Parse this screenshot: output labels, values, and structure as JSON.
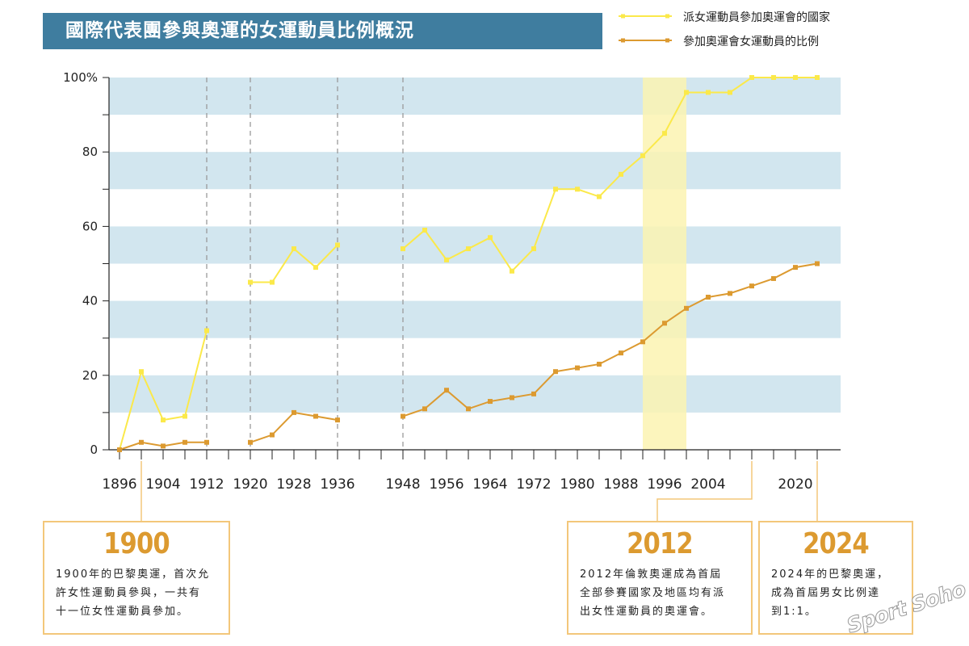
{
  "title": "國際代表團參與奧運的女運動員比例概況",
  "colors": {
    "title_bg": "#3f7d9f",
    "band": "#d2e6ef",
    "series_countries": "#fbe94a",
    "series_athletes": "#dc9a30",
    "highlight": "#fbf3b1",
    "callout_border": "#f3c77a",
    "callout_year": "#dc9a30"
  },
  "chart_data": {
    "type": "line",
    "ylim": [
      0,
      100
    ],
    "xlim": [
      1896,
      2024
    ],
    "y_ticks": [
      "0",
      "20",
      "40",
      "60",
      "80",
      "100%"
    ],
    "x_tick_labels": [
      "1896",
      "1904",
      "1912",
      "1920",
      "1928",
      "1936",
      "1948",
      "1956",
      "1964",
      "1972",
      "1980",
      "1988",
      "1996",
      "2004",
      "2020"
    ],
    "dashed_year_markers": [
      1912,
      1920,
      1936,
      1948
    ],
    "highlight_years": [
      1992,
      2000
    ],
    "series": [
      {
        "name": "派女運動員參加奧運會的國家",
        "segments": [
          {
            "x": [
              1896,
              1900,
              1904,
              1908,
              1912
            ],
            "y": [
              0,
              21,
              8,
              9,
              32
            ]
          },
          {
            "x": [
              1920,
              1924,
              1928,
              1932,
              1936
            ],
            "y": [
              45,
              45,
              54,
              49,
              55
            ]
          },
          {
            "x": [
              1948,
              1952,
              1956,
              1960,
              1964,
              1968,
              1972,
              1976,
              1980,
              1984,
              1988,
              1992,
              1996,
              2000,
              2004,
              2008,
              2012,
              2016,
              2020,
              2024
            ],
            "y": [
              54,
              59,
              51,
              54,
              57,
              48,
              54,
              70,
              70,
              68,
              74,
              79,
              85,
              96,
              96,
              96,
              100,
              100,
              100,
              100
            ]
          }
        ]
      },
      {
        "name": "參加奧運會女運動員的比例",
        "segments": [
          {
            "x": [
              1896,
              1900,
              1904,
              1908,
              1912
            ],
            "y": [
              0,
              2,
              1,
              2,
              2
            ]
          },
          {
            "x": [
              1920,
              1924,
              1928,
              1932,
              1936
            ],
            "y": [
              2,
              4,
              10,
              9,
              8
            ]
          },
          {
            "x": [
              1948,
              1952,
              1956,
              1960,
              1964,
              1968,
              1972,
              1976,
              1980,
              1984,
              1988,
              1992,
              1996,
              2000,
              2004,
              2008,
              2012,
              2016,
              2020,
              2024
            ],
            "y": [
              9,
              11,
              16,
              11,
              13,
              14,
              15,
              21,
              22,
              23,
              26,
              29,
              34,
              38,
              41,
              42,
              44,
              46,
              49,
              50
            ]
          }
        ]
      }
    ]
  },
  "callouts": [
    {
      "year": "1900",
      "lines": [
        "1900年的巴黎奧運，首次允",
        "許女性運動員參與，一共有",
        "十一位女性運動員參加。"
      ],
      "anchor_year": 1900
    },
    {
      "year": "2012",
      "lines": [
        "2012年倫敦奧運成為首屆",
        "全部參賽國家及地區均有派",
        "出女性運動員的奧運會。"
      ],
      "anchor_year": 2012
    },
    {
      "year": "2024",
      "lines": [
        "2024年的巴黎奧運，",
        "成為首屆男女比例達",
        "到1:1。"
      ],
      "anchor_year": 2024
    }
  ],
  "watermark": "Sport Soho"
}
